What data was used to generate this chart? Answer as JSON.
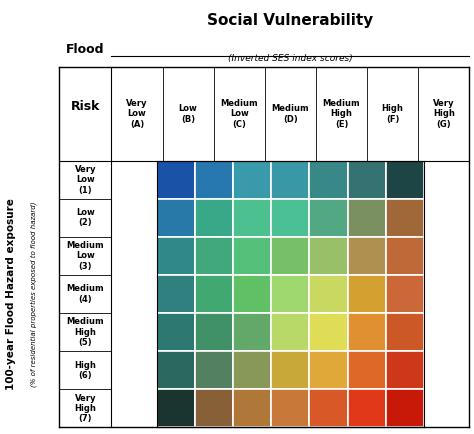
{
  "title": "Social Vulnerability",
  "subtitle": "(Inverted SES index scores)",
  "col_labels": [
    "Very\nLow\n(A)",
    "Low\n(B)",
    "Medium\nLow\n(C)",
    "Medium\n(D)",
    "Medium\nHigh\n(E)",
    "High\n(F)",
    "Very\nHigh\n(G)"
  ],
  "row_labels": [
    "Very\nLow\n(1)",
    "Low\n(2)",
    "Medium\nLow\n(3)",
    "Medium\n(4)",
    "Medium\nHigh\n(5)",
    "High\n(6)",
    "Very\nHigh\n(7)"
  ],
  "y_axis_label": "100-year Flood Hazard exposure",
  "y_axis_sublabel": "(% of residential properties exposed to flood hazard)",
  "flood_label": "Flood",
  "risk_label": "Risk",
  "colors": [
    [
      "#1a52a8",
      "#2878b0",
      "#389aaa",
      "#3898a5",
      "#388888",
      "#357272",
      "#1d4545"
    ],
    [
      "#2878a8",
      "#38a888",
      "#4dc090",
      "#4bbf95",
      "#52a882",
      "#7a9060",
      "#a06838"
    ],
    [
      "#308888",
      "#40a87a",
      "#55c07a",
      "#78c068",
      "#98c068",
      "#b09050",
      "#bf6838"
    ],
    [
      "#308080",
      "#40a870",
      "#60c065",
      "#a0d870",
      "#c8d860",
      "#d4a030",
      "#cc6838"
    ],
    [
      "#2d7870",
      "#409068",
      "#62a868",
      "#b8d868",
      "#dedd55",
      "#e09030",
      "#cc5828"
    ],
    [
      "#2a6860",
      "#528060",
      "#889858",
      "#c8a838",
      "#e0a838",
      "#dd6828",
      "#cc3818"
    ],
    [
      "#1a3530",
      "#886038",
      "#b07838",
      "#c87838",
      "#d85828",
      "#e03818",
      "#c81808"
    ]
  ],
  "background": "#ffffff"
}
